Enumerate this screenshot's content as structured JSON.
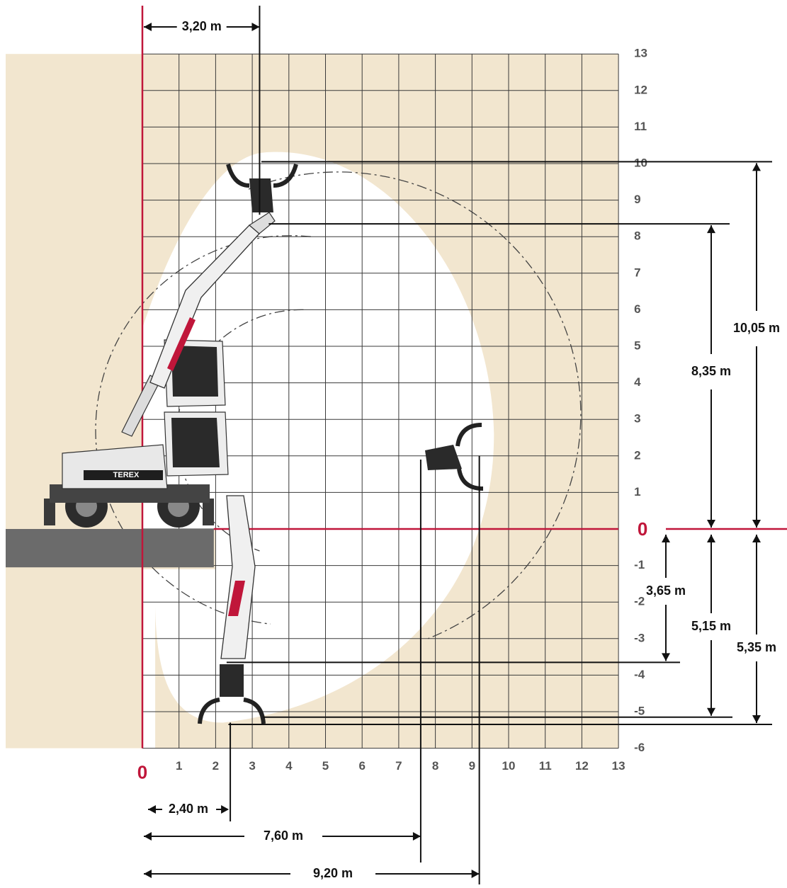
{
  "chart_data": {
    "type": "working-range-diagram",
    "x_ticks": [
      "0",
      "1",
      "2",
      "3",
      "4",
      "5",
      "6",
      "7",
      "8",
      "9",
      "10",
      "11",
      "12",
      "13"
    ],
    "y_ticks": [
      "13",
      "12",
      "11",
      "10",
      "9",
      "8",
      "7",
      "6",
      "5",
      "4",
      "3",
      "2",
      "1",
      "0",
      "-1",
      "-2",
      "-3",
      "-4",
      "-5",
      "-6"
    ],
    "xlim": [
      0,
      13
    ],
    "ylim": [
      -6,
      13
    ],
    "grid": true,
    "zero_color": "#c0163a",
    "dimensions": {
      "top_width": {
        "label": "3,20 m",
        "value": 3.2,
        "axis": "x"
      },
      "max_height": {
        "label": "10,05 m",
        "value": 10.05,
        "axis": "y"
      },
      "height_at_pivot": {
        "label": "8,35 m",
        "value": 8.35,
        "axis": "y"
      },
      "depth_tine_tip": {
        "label": "3,65 m",
        "value": -3.65,
        "axis": "y"
      },
      "depth_grab_bottom": {
        "label": "5,15 m",
        "value": -5.15,
        "axis": "y"
      },
      "max_depth": {
        "label": "5,35 m",
        "value": -5.35,
        "axis": "y"
      },
      "reach_deep": {
        "label": "2,40 m",
        "value": 2.4,
        "axis": "x"
      },
      "reach_mid": {
        "label": "7,60 m",
        "value": 7.6,
        "axis": "x"
      },
      "max_reach": {
        "label": "9,20 m",
        "value": 9.2,
        "axis": "x"
      }
    }
  },
  "machine": {
    "brand": "TEREX"
  },
  "colors": {
    "ground": "#f2e6cf",
    "grid": "#3a3a3a",
    "platform": "#6b6b6b",
    "accent": "#c0163a"
  }
}
